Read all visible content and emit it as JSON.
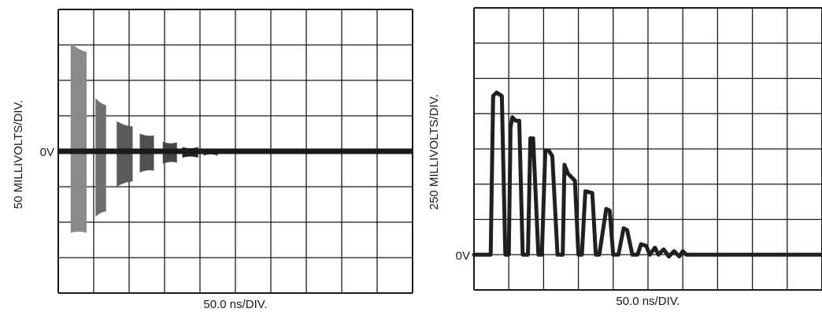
{
  "chart_data": [
    {
      "type": "line",
      "ylabel": "50 MILLIVOLTS/DIV.",
      "xlabel": "50.0 ns/DIV.",
      "zero_label": "0V",
      "grid": true,
      "divisions": {
        "x": 10,
        "y": 8
      },
      "zero_division": 4,
      "trace_color": "#1a1a1a",
      "burst_colors": [
        "#8a8a8a",
        "#6e6e6e",
        "#595959",
        "#505050",
        "#464646",
        "#282828",
        "#282828",
        "#2e2e2e",
        "#3c3c3c"
      ],
      "bursts": [
        {
          "t": [
            0.35,
            0.8
          ],
          "top": [
            3.05,
            2.8
          ],
          "bottom": [
            -2.3,
            -2.3
          ]
        },
        {
          "t": [
            1.05,
            1.35
          ],
          "top": [
            1.5,
            1.3
          ],
          "bottom": [
            -1.85,
            -1.7
          ]
        },
        {
          "t": [
            1.65,
            2.1
          ],
          "top": [
            0.85,
            0.7
          ],
          "bottom": [
            -1.0,
            -0.85
          ]
        },
        {
          "t": [
            2.3,
            2.7
          ],
          "top": [
            0.5,
            0.45
          ],
          "bottom": [
            -0.6,
            -0.55
          ]
        },
        {
          "t": [
            2.95,
            3.35
          ],
          "top": [
            0.27,
            0.25
          ],
          "bottom": [
            -0.35,
            -0.32
          ]
        },
        {
          "t": [
            3.5,
            3.95
          ],
          "top": [
            0.12,
            0.12
          ],
          "bottom": [
            -0.18,
            -0.18
          ]
        },
        {
          "t": [
            4.1,
            4.5
          ],
          "top": [
            0.08,
            0.08
          ],
          "bottom": [
            -0.12,
            -0.12
          ]
        },
        {
          "t": [
            4.65,
            4.9
          ],
          "top": [
            0.05,
            0.05
          ],
          "bottom": [
            -0.08,
            -0.08
          ]
        },
        {
          "t": [
            5.05,
            5.3
          ],
          "top": [
            0.04,
            0.04
          ],
          "bottom": [
            -0.06,
            -0.06
          ]
        }
      ]
    },
    {
      "type": "line",
      "ylabel": "250 MILLIVOLTS/DIV.",
      "xlabel": "50.0 ns/DIV.",
      "zero_label": "0V",
      "grid": true,
      "divisions": {
        "x": 10,
        "y": 8
      },
      "zero_division": 1,
      "trace_color": "#231f20",
      "series": [
        {
          "x": [
            0,
            0.35,
            0.48,
            0.55,
            0.65,
            0.8,
            0.9,
            1.0,
            1.05,
            1.1,
            1.2,
            1.3,
            1.4,
            1.55,
            1.62,
            1.7,
            1.85,
            1.95,
            2.05,
            2.15,
            2.25,
            2.4,
            2.55,
            2.6,
            2.7,
            2.9,
            3.0,
            3.1,
            3.2,
            3.4,
            3.5,
            3.6,
            3.8,
            3.9,
            4.0,
            4.15,
            4.3,
            4.4,
            4.55,
            4.7,
            4.8,
            4.95,
            5.05,
            5.2,
            5.3,
            5.45,
            5.6,
            5.75,
            5.9,
            6.0,
            6.1,
            6.3,
            12
          ],
          "y": [
            0,
            0,
            0,
            4.5,
            4.6,
            4.5,
            0,
            0,
            3.6,
            3.9,
            3.8,
            3.8,
            0,
            0,
            3.3,
            3.3,
            0,
            0,
            2.95,
            2.95,
            2.8,
            0,
            0,
            2.55,
            2.3,
            2.1,
            0,
            0,
            1.8,
            1.75,
            0,
            0,
            1.3,
            1.25,
            0,
            0,
            0.75,
            0.7,
            0,
            0,
            0.3,
            0.25,
            0,
            0.2,
            0,
            0.15,
            -0.05,
            0.1,
            -0.05,
            0.1,
            0,
            0,
            0
          ]
        }
      ]
    }
  ]
}
